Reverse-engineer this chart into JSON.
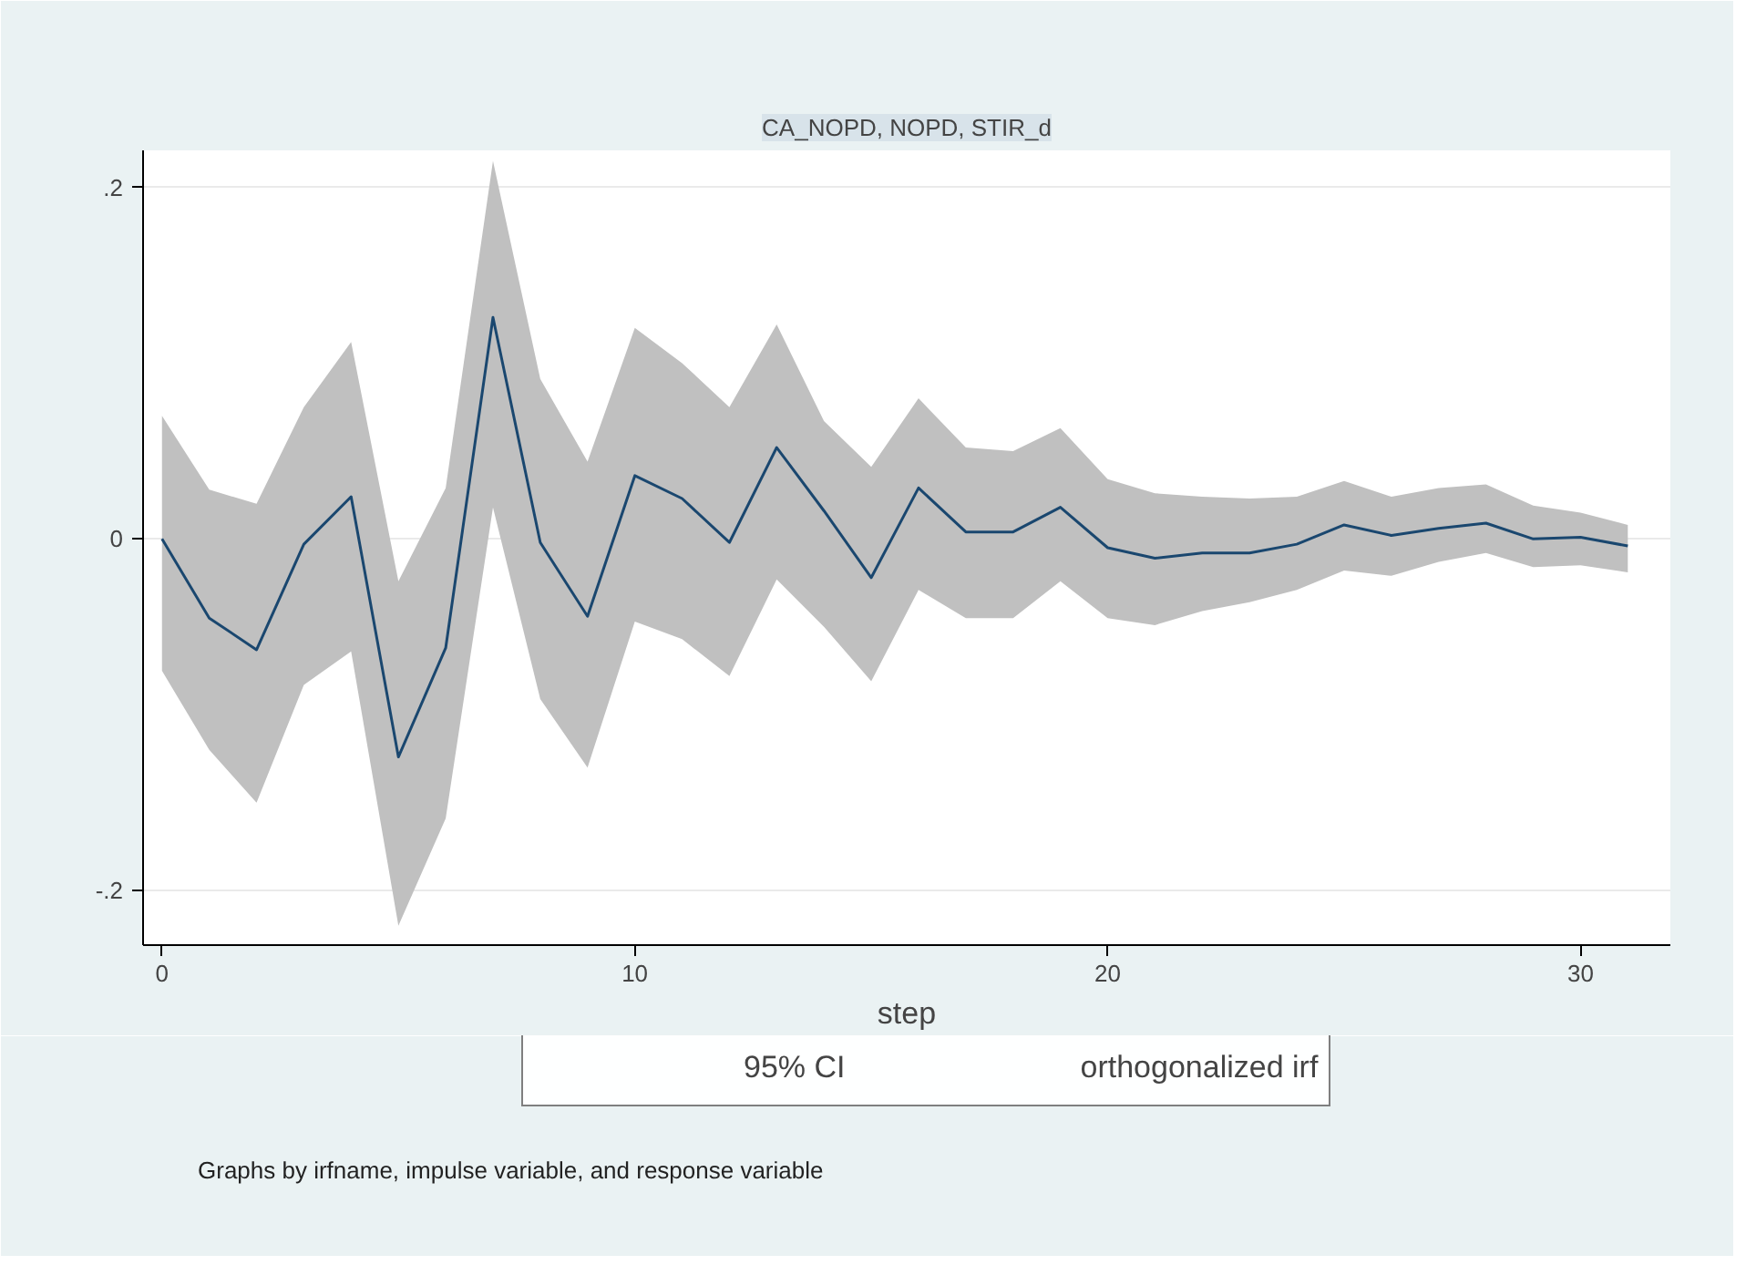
{
  "chart_data": {
    "type": "line",
    "title": "CA_NOPD, NOPD, STIR_d",
    "xlabel": "step",
    "x": [
      0,
      1,
      2,
      3,
      4,
      5,
      6,
      7,
      8,
      9,
      10,
      11,
      12,
      13,
      14,
      15,
      16,
      17,
      18,
      19,
      20,
      21,
      22,
      23,
      24,
      25,
      26,
      27,
      28,
      29,
      30,
      31
    ],
    "series": [
      {
        "name": "orthogonalized irf",
        "color": "#1a476f",
        "values": [
          0.0,
          -0.045,
          -0.063,
          -0.003,
          0.024,
          -0.124,
          -0.062,
          0.126,
          -0.002,
          -0.044,
          0.036,
          0.023,
          -0.002,
          0.052,
          0.016,
          -0.022,
          0.029,
          0.004,
          0.004,
          0.018,
          -0.005,
          -0.011,
          -0.008,
          -0.008,
          -0.003,
          0.008,
          0.002,
          0.006,
          0.009,
          0.0,
          0.001,
          -0.004
        ],
        "lower": [
          -0.075,
          -0.12,
          -0.15,
          -0.083,
          -0.064,
          -0.22,
          -0.159,
          0.018,
          -0.091,
          -0.13,
          -0.047,
          -0.057,
          -0.078,
          -0.023,
          -0.05,
          -0.081,
          -0.029,
          -0.045,
          -0.045,
          -0.024,
          -0.045,
          -0.049,
          -0.041,
          -0.036,
          -0.029,
          -0.018,
          -0.021,
          -0.013,
          -0.008,
          -0.016,
          -0.015,
          -0.019
        ],
        "upper": [
          0.07,
          0.028,
          0.02,
          0.075,
          0.112,
          -0.024,
          0.029,
          0.215,
          0.091,
          0.044,
          0.12,
          0.1,
          0.075,
          0.122,
          0.067,
          0.041,
          0.08,
          0.052,
          0.05,
          0.063,
          0.034,
          0.026,
          0.024,
          0.023,
          0.024,
          0.033,
          0.024,
          0.029,
          0.031,
          0.019,
          0.015,
          0.008
        ]
      }
    ],
    "xlim": [
      -0.4,
      31.9
    ],
    "ylim": [
      -0.231,
      0.221
    ],
    "xticks": [
      0,
      10,
      20,
      30
    ],
    "yticks": [
      {
        "value": -0.2,
        "label": "-.2"
      },
      0,
      {
        "value": 0.2,
        "label": ".2"
      }
    ],
    "grid": "y",
    "legend": "bottom",
    "annotations": [
      "95% CI",
      "Graphs by irfname, impulse variable, and response variable"
    ]
  }
}
